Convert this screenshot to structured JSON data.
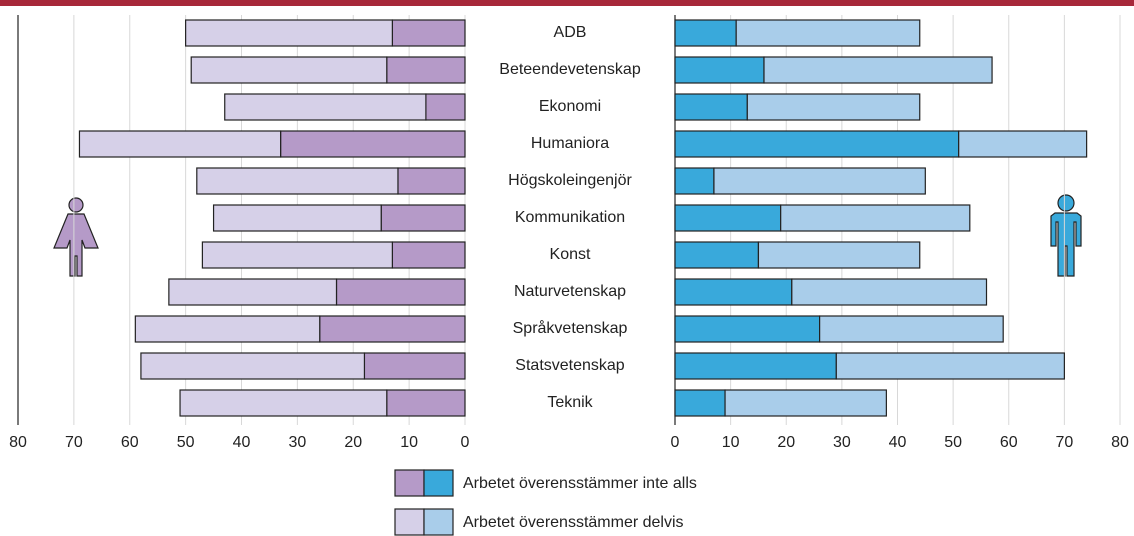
{
  "chart_data": {
    "type": "bar",
    "orientation": "horizontal",
    "stacked": true,
    "grid": true,
    "categories": [
      "ADB",
      "Beteendevetenskap",
      "Ekonomi",
      "Humaniora",
      "Högskoleingenjör",
      "Kommunikation",
      "Konst",
      "Naturvetenskap",
      "Språkvetenskap",
      "Statsvetenskap",
      "Teknik"
    ],
    "series": [
      {
        "name": "Arbetet överensstämmer inte alls"
      },
      {
        "name": "Arbetet överensstämmer delvis"
      }
    ],
    "panels": [
      {
        "xlim": [
          80,
          0
        ],
        "xticks": [
          80,
          70,
          60,
          50,
          40,
          30,
          20,
          10,
          0
        ],
        "series": [
          {
            "color": "#b59ac8",
            "values": [
              13,
              14,
              7,
              33,
              12,
              15,
              13,
              23,
              26,
              18,
              14
            ]
          },
          {
            "color": "#d6d0e8",
            "values": [
              37,
              35,
              36,
              36,
              36,
              30,
              34,
              30,
              33,
              40,
              37
            ]
          }
        ]
      },
      {
        "xlim": [
          0,
          80
        ],
        "xticks": [
          0,
          10,
          20,
          30,
          40,
          50,
          60,
          70,
          80
        ],
        "series": [
          {
            "color": "#39a9db",
            "values": [
              11,
              16,
              13,
              51,
              7,
              19,
              15,
              21,
              26,
              29,
              9
            ]
          },
          {
            "color": "#a9cdea",
            "values": [
              33,
              41,
              31,
              23,
              38,
              34,
              29,
              35,
              33,
              41,
              29
            ]
          }
        ]
      }
    ]
  }
}
